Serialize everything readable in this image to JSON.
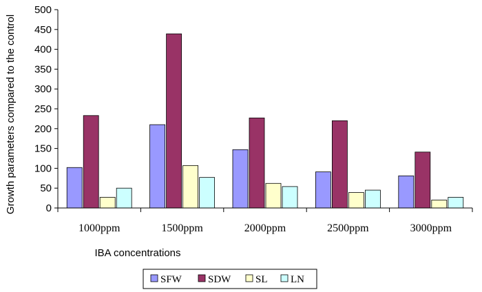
{
  "chart_data": {
    "type": "bar",
    "title": "",
    "xlabel": "IBA concentrations",
    "ylabel": "Growth parameters compared to the control",
    "categories": [
      "1000ppm",
      "1500ppm",
      "2000ppm",
      "2500ppm",
      "3000ppm"
    ],
    "ylim": [
      0,
      500
    ],
    "yticks": [
      0,
      50,
      100,
      150,
      200,
      250,
      300,
      350,
      400,
      450,
      500
    ],
    "grid": false,
    "legend_position": "bottom",
    "series": [
      {
        "name": "SFW",
        "color": "#9999ff",
        "values": [
          102,
          210,
          147,
          91,
          81
        ]
      },
      {
        "name": "SDW",
        "color": "#993366",
        "values": [
          233,
          439,
          227,
          220,
          141
        ]
      },
      {
        "name": "SL",
        "color": "#ffffcc",
        "values": [
          27,
          107,
          62,
          39,
          20
        ]
      },
      {
        "name": "LN",
        "color": "#ccffff",
        "values": [
          50,
          77,
          54,
          45,
          27
        ]
      }
    ]
  }
}
